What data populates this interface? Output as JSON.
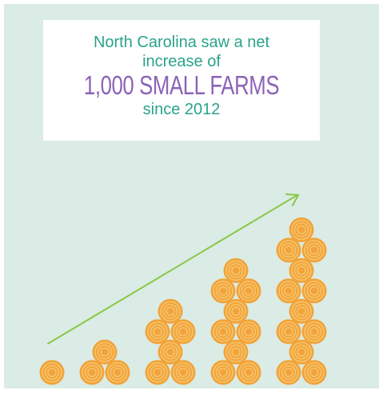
{
  "headline": {
    "line1": "North Carolina saw a net",
    "line2": "increase of",
    "highlight": "1,000 SMALL FARMS",
    "line3": "since 2012"
  },
  "colors": {
    "background": "#daece5",
    "text_teal": "#2aa38a",
    "highlight_purple": "#8b63b8",
    "arrow_green": "#8cc646",
    "hay_outer": "#f2a33a",
    "hay_inner": "#f6c46c"
  },
  "stacks": [
    {
      "rows": [
        1
      ]
    },
    {
      "rows": [
        1,
        2
      ]
    },
    {
      "rows": [
        1,
        2,
        1,
        2
      ]
    },
    {
      "rows": [
        1,
        2,
        1,
        2,
        1,
        2
      ]
    },
    {
      "rows": [
        1,
        2,
        1,
        2,
        1,
        2,
        1,
        2
      ]
    }
  ],
  "icons": {
    "bale": "hay-bale-icon",
    "arrow": "growth-arrow-icon"
  }
}
